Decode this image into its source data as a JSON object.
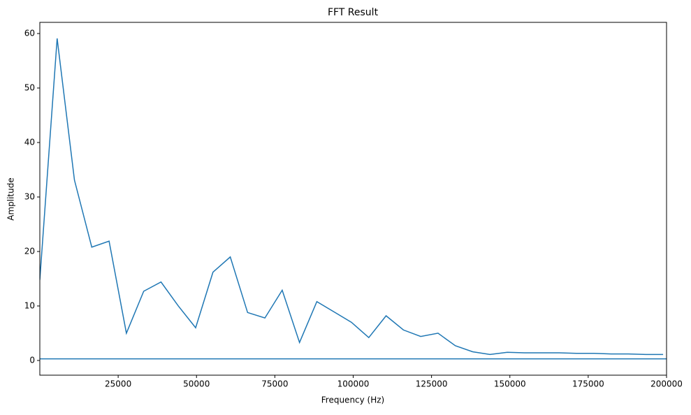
{
  "chart_data": {
    "type": "line",
    "title": "FFT Result",
    "x_label": "Frequency (Hz)",
    "y_label": "Amplitude",
    "series": [
      {
        "color": "#1f77b4",
        "x": [
          0,
          5525,
          11050,
          16575,
          22100,
          27625,
          33150,
          38675,
          44200,
          49725,
          55250,
          60775,
          66300,
          71825,
          77350,
          82875,
          88400,
          93925,
          99450,
          104975,
          110500,
          116025,
          121550,
          127075,
          132600,
          138125,
          143650,
          149175,
          154700,
          160225,
          165750,
          171275,
          176800,
          182325,
          187850,
          193375,
          198900
        ],
        "values": [
          14.8,
          59.1,
          33.1,
          20.8,
          21.9,
          5.0,
          12.7,
          14.4,
          10.0,
          6.0,
          16.2,
          19.0,
          8.8,
          7.8,
          12.9,
          3.3,
          10.8,
          8.9,
          7.0,
          4.2,
          8.2,
          5.6,
          4.4,
          5.0,
          2.7,
          1.6,
          1.1,
          1.5,
          1.4,
          1.4,
          1.4,
          1.3,
          1.3,
          1.2,
          1.2,
          1.1,
          1.1
        ]
      },
      {
        "color": "#1f77b4",
        "x": [
          0,
          200000
        ],
        "values": [
          0.3,
          0.3
        ]
      }
    ],
    "xlim": [
      0,
      200000
    ],
    "ylim": [
      -2.7,
      62.05
    ],
    "xticks": [
      25000,
      50000,
      75000,
      100000,
      125000,
      150000,
      175000,
      200000
    ],
    "yticks": [
      0,
      10,
      20,
      30,
      40,
      50,
      60
    ],
    "grid": false
  }
}
